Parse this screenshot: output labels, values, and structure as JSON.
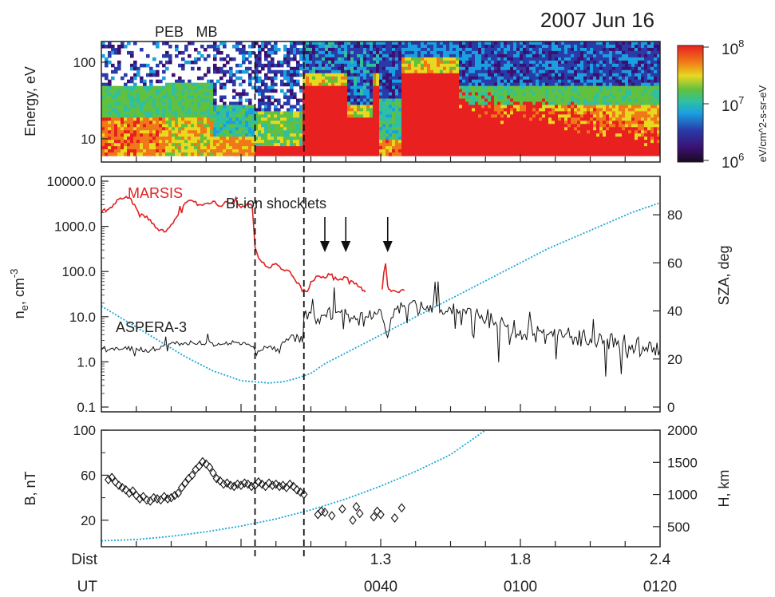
{
  "date_title": "2007 Jun 16",
  "boundaries": [
    {
      "label": "PEB",
      "ut_min": 22
    },
    {
      "label": "MB",
      "ut_min": 29
    }
  ],
  "x_axis": {
    "rows": [
      {
        "label": "Dist",
        "ticks": [
          {
            "ut_min": 40,
            "text": "1.3"
          },
          {
            "ut_min": 60,
            "text": "1.8"
          },
          {
            "ut_min": 80,
            "text": "2.4"
          }
        ]
      },
      {
        "label": "UT",
        "ticks": [
          {
            "ut_min": 40,
            "text": "0040"
          },
          {
            "ut_min": 60,
            "text": "0100"
          },
          {
            "ut_min": 80,
            "text": "0120"
          }
        ]
      }
    ],
    "ut_range_min": [
      0,
      80
    ],
    "minor_ticks_min": [
      5,
      10,
      15,
      20,
      25,
      30,
      35,
      40,
      45,
      50,
      55,
      60,
      65,
      70,
      75
    ]
  },
  "panels": {
    "spectrogram": {
      "ylabel": "Energy, eV",
      "yscale": "log",
      "ylim": [
        8,
        170
      ],
      "ticks": [
        "10",
        "100"
      ],
      "colorbar": {
        "label": "eV/cm^2-s-sr-eV",
        "scale": "log",
        "range": [
          1000000,
          100000000
        ],
        "ticks": [
          {
            "base": "10",
            "exp": "6"
          },
          {
            "base": "10",
            "exp": "7"
          },
          {
            "base": "10",
            "exp": "8"
          }
        ],
        "colors": [
          "#1a0a20",
          "#3b1070",
          "#2a3aa8",
          "#1aa0e0",
          "#30c0a0",
          "#60c040",
          "#e8d820",
          "#f07818",
          "#e82020"
        ]
      }
    },
    "density": {
      "ylabel_main": "n",
      "ylabel_sub": "e",
      "ylabel_rest": ", cm",
      "ylabel_exp": "-3",
      "yscale": "log",
      "ylim": [
        0.1,
        10000
      ],
      "ticks": [
        "0.1",
        "1.0",
        "10.0",
        "100.0",
        "1000.0",
        "10000.0"
      ],
      "right_label": "SZA, deg",
      "right_ylim": [
        0,
        90
      ],
      "right_ticks": [
        "0",
        "20",
        "40",
        "60",
        "80"
      ],
      "annotations": [
        {
          "text": "MARSIS",
          "color": "#e02020"
        },
        {
          "text": "ASPERA-3",
          "color": "#222222"
        },
        {
          "text": "Bi-ion shocklets",
          "color": "#222222",
          "arrows_ut_min": [
            32,
            35,
            41
          ]
        }
      ]
    },
    "magnetic": {
      "ylabel": "B, nT",
      "ylim": [
        0,
        100
      ],
      "ticks": [
        "20",
        "60",
        "100"
      ],
      "right_label": "H, km",
      "right_ylim": [
        250,
        2000
      ],
      "right_ticks": [
        "500",
        "1000",
        "1500",
        "2000"
      ]
    }
  },
  "chart_data": [
    {
      "type": "heatmap",
      "ylabel": "Energy, eV",
      "description_units": "eV/cm^2-s-sr-eV",
      "regions": [
        {
          "ut_range_min": [
            0,
            9
          ],
          "features": "plasma with peak ~15-20 eV, low flux above 60 eV"
        },
        {
          "ut_range_min": [
            9,
            16
          ],
          "features": "moderate flux band 20-60 eV"
        },
        {
          "ut_range_min": [
            29,
            40
          ],
          "features": "intense flux 8-60 eV"
        },
        {
          "ut_range_min": [
            43,
            51
          ],
          "features": "intense flux 8-80 eV"
        },
        {
          "ut_range_min": [
            51,
            80
          ],
          "features": "decreasing flux, peak below 20 eV"
        }
      ]
    },
    {
      "type": "line",
      "series": [
        {
          "name": "MARSIS",
          "color": "#e02020",
          "yscale": "log",
          "x": [
            0,
            1.5,
            2.5,
            4,
            5,
            6,
            7,
            8,
            9,
            10,
            11,
            12,
            13,
            14,
            15,
            16,
            17,
            18,
            19,
            20,
            21,
            21.6,
            22,
            22.5,
            23,
            24,
            25,
            26,
            27,
            28,
            28.5,
            29,
            29.5,
            30,
            31,
            32,
            33,
            34,
            35,
            36,
            37,
            37.8,
            40.2,
            40.7,
            41,
            41.3,
            41.7,
            42.4,
            43.4
          ],
          "y": [
            2000,
            2600,
            4000,
            4300,
            2500,
            1800,
            1400,
            900,
            750,
            1100,
            1800,
            3300,
            3700,
            3000,
            3200,
            3600,
            2800,
            3500,
            3300,
            2600,
            3300,
            2800,
            350,
            200,
            160,
            120,
            150,
            110,
            100,
            55,
            48,
            40,
            36,
            60,
            80,
            72,
            88,
            65,
            75,
            60,
            45,
            35,
            40,
            150,
            48,
            40,
            38,
            35,
            38
          ]
        },
        {
          "name": "ASPERA-3",
          "color": "#222222",
          "yscale": "log",
          "x": [
            0,
            3,
            5,
            7,
            9,
            11,
            13,
            15,
            17,
            19,
            21,
            22,
            24,
            25,
            26,
            27,
            28,
            28.8,
            29,
            30,
            31,
            32,
            34,
            36,
            38,
            40,
            41,
            42,
            44,
            46,
            48,
            50,
            52,
            54,
            56,
            58,
            60,
            62,
            64,
            66,
            68,
            70,
            72,
            74,
            76,
            78,
            80
          ],
          "y": [
            1.8,
            1.9,
            2.0,
            1.8,
            2.3,
            2.6,
            2.7,
            2.6,
            2.4,
            2.7,
            2.5,
            1.8,
            2.2,
            1.7,
            2.8,
            3.5,
            4.0,
            2.7,
            10.0,
            12,
            9,
            11,
            13,
            9,
            10,
            14,
            3.5,
            15,
            18,
            16,
            17,
            15,
            14,
            11,
            8,
            6,
            5,
            4.2,
            4.0,
            3.6,
            3.5,
            3.2,
            3.0,
            2.9,
            2.4,
            2.1,
            1.9
          ]
        },
        {
          "name": "SZA",
          "color": "#1aa8d8",
          "yscale": "linear",
          "axis": "right",
          "x": [
            0,
            4,
            8,
            12,
            16,
            20,
            24,
            26,
            28,
            30,
            32,
            36,
            40,
            44,
            48,
            52,
            56,
            60,
            64,
            68,
            72,
            76,
            80
          ],
          "y": [
            42,
            35,
            28,
            21,
            15,
            11,
            10,
            10.5,
            12,
            14,
            18,
            24,
            30,
            36,
            42,
            48,
            54,
            60,
            66,
            71,
            76,
            81,
            85
          ]
        }
      ]
    },
    {
      "type": "scatter",
      "series": [
        {
          "name": "B",
          "marker": "diamond",
          "x": [
            1,
            1.5,
            2,
            2.5,
            3,
            3.5,
            4,
            4.5,
            5,
            5.5,
            6,
            6.5,
            7,
            7.5,
            8,
            8.5,
            9,
            9.5,
            10,
            10.5,
            11,
            11.5,
            12,
            12.5,
            13,
            13.5,
            14,
            14.5,
            15,
            15.5,
            16,
            16.5,
            17,
            17.5,
            18,
            18.5,
            19,
            19.5,
            20,
            20.5,
            21,
            21.5,
            22,
            22.5,
            23,
            23.5,
            24,
            24.5,
            25,
            25.5,
            26,
            26.5,
            27,
            27.5,
            28,
            28.5,
            29,
            31,
            31.5,
            32,
            33,
            34.5,
            36,
            36.5,
            37,
            39,
            39.5,
            40,
            42,
            43
          ],
          "y": [
            56,
            58,
            54,
            51,
            49,
            47,
            44,
            46,
            42,
            39,
            41,
            38,
            37,
            40,
            39,
            38,
            41,
            39,
            40,
            42,
            44,
            49,
            53,
            57,
            60,
            65,
            68,
            72,
            70,
            67,
            62,
            57,
            55,
            52,
            53,
            51,
            50,
            52,
            51,
            53,
            52,
            50,
            51,
            54,
            52,
            50,
            53,
            51,
            52,
            50,
            51,
            49,
            52,
            50,
            47,
            45,
            43,
            25,
            28,
            27,
            24,
            30,
            20,
            32,
            26,
            23,
            28,
            25,
            22,
            31
          ]
        },
        {
          "name": "H",
          "color": "#1aa8d8",
          "axis": "right",
          "x": [
            0,
            5,
            10,
            15,
            20,
            25,
            30,
            35,
            40,
            45,
            50,
            55
          ],
          "y": [
            280,
            300,
            350,
            420,
            510,
            620,
            760,
            930,
            1130,
            1360,
            1620,
            2000
          ]
        }
      ]
    }
  ]
}
